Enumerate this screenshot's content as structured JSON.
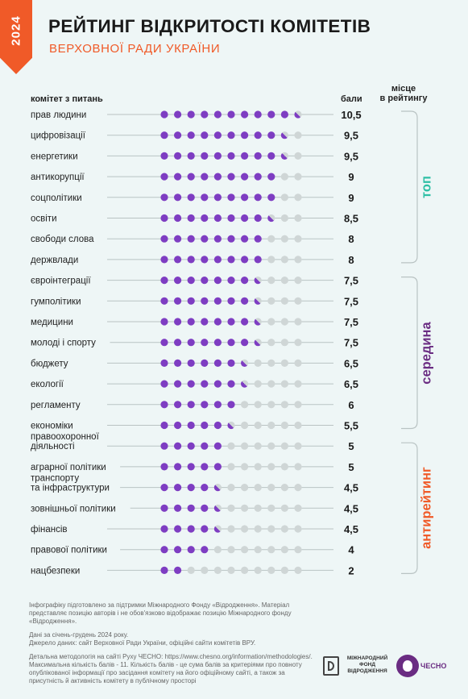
{
  "year": "2024",
  "title": "РЕЙТИНГ ВІДКРИТОСТІ КОМІТЕТІВ",
  "subtitle": "ВЕРХОВНОЇ РАДИ УКРАЇНИ",
  "headers": {
    "committee": "комітет з питань",
    "score": "бали",
    "place_line1": "місце",
    "place_line2": "в рейтингу"
  },
  "colors": {
    "filled": "#7e3dc2",
    "empty": "#cfd6d6",
    "top": "#2ebfa5",
    "middle": "#6a2c82",
    "anti": "#f05a28",
    "line": "#b9c3c3",
    "brand": "#f05a28"
  },
  "chart_data": {
    "type": "dot-rating",
    "max_score": 11,
    "committees": [
      {
        "name": "прав людини",
        "score": 10.5,
        "score_label": "10,5"
      },
      {
        "name": "цифровізації",
        "score": 9.5,
        "score_label": "9,5"
      },
      {
        "name": "енергетики",
        "score": 9.5,
        "score_label": "9,5"
      },
      {
        "name": "антикорупції",
        "score": 9,
        "score_label": "9"
      },
      {
        "name": "соцполітики",
        "score": 9,
        "score_label": "9"
      },
      {
        "name": "освіти",
        "score": 8.5,
        "score_label": "8,5"
      },
      {
        "name": "свободи слова",
        "score": 8,
        "score_label": "8"
      },
      {
        "name": "держвлади",
        "score": 8,
        "score_label": "8"
      },
      {
        "name": "євроінтеграції",
        "score": 7.5,
        "score_label": "7,5"
      },
      {
        "name": "гумполітики",
        "score": 7.5,
        "score_label": "7,5"
      },
      {
        "name": "медицини",
        "score": 7.5,
        "score_label": "7,5"
      },
      {
        "name": "молоді і спорту",
        "score": 7.5,
        "score_label": "7,5"
      },
      {
        "name": "бюджету",
        "score": 6.5,
        "score_label": "6,5"
      },
      {
        "name": "екології",
        "score": 6.5,
        "score_label": "6,5"
      },
      {
        "name": "регламенту",
        "score": 6,
        "score_label": "6"
      },
      {
        "name": "економіки",
        "score": 5.5,
        "score_label": "5,5"
      },
      {
        "name": "правоохоронної\nдіяльності",
        "score": 5,
        "score_label": "5"
      },
      {
        "name": "аграрної політики",
        "score": 5,
        "score_label": "5"
      },
      {
        "name": "транспорту\nта інфраструктури",
        "score": 4.5,
        "score_label": "4,5"
      },
      {
        "name": "зовнішньої політики",
        "score": 4.5,
        "score_label": "4,5"
      },
      {
        "name": "фінансів",
        "score": 4.5,
        "score_label": "4,5"
      },
      {
        "name": "правової політики",
        "score": 4,
        "score_label": "4"
      },
      {
        "name": "нацбезпеки",
        "score": 2,
        "score_label": "2"
      }
    ],
    "groups": [
      {
        "label": "топ",
        "from": 0,
        "to": 7,
        "color": "#2ebfa5"
      },
      {
        "label": "середина",
        "from": 8,
        "to": 15,
        "color": "#6a2c82"
      },
      {
        "label": "антирейтинг",
        "from": 16,
        "to": 22,
        "color": "#f05a28"
      }
    ]
  },
  "footer": {
    "p1": "Інфографіку підготовлено за підтримки Міжнародного Фонду «Відродження». Матеріал представляє позицію авторів і не обов'язково відображає позицію Міжнародного фонду «Відродження».",
    "p2a": "Дані за січень-грудень 2024 року.",
    "p2b": "Джерело даних: сайт Верховної Ради України, офіційні сайти комітетів ВРУ.",
    "p3a": "Детальна методологія на сайті Руху ЧЕСНО: https://www.chesno.org/information/methodologies/.",
    "p3b": "Максимальна кількість балів - 11. Кількість балів - це сума балів за критеріями про повноту опублікованої інформації про засідання комітету на його офіційному сайті, а також за присутність й активність комітету в публічному просторі"
  },
  "logos": {
    "irf_line1": "МІЖНАРОДНИЙ",
    "irf_line2": "ФОНД",
    "irf_line3": "ВІДРОДЖЕННЯ",
    "chesno": "ЧЕСНО"
  }
}
